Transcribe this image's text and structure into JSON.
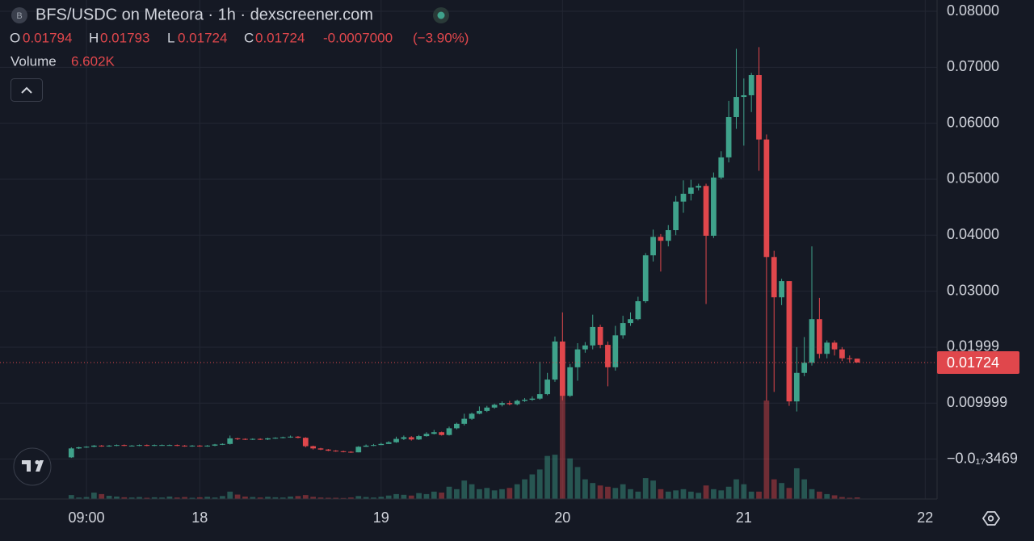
{
  "chart_data": {
    "type": "candlestick",
    "title": "BFS/USDC on Meteora · 1h · dexscreener.com",
    "ohlc_labels": [
      "O",
      "H",
      "L",
      "C"
    ],
    "change": "-0.0007000",
    "change_pct": "(−3.90%)",
    "volume_label": "Volume",
    "volume_value": "6.602K",
    "up_color": "#3fa28b",
    "down_color": "#e0474c",
    "grid": true,
    "xlim": [
      -2.44,
      121.57
    ],
    "xticks": [
      {
        "value": 9,
        "label": "09:00"
      },
      {
        "value": 24,
        "label": "18"
      },
      {
        "value": 48,
        "label": "19"
      },
      {
        "value": 72,
        "label": "20"
      },
      {
        "value": 96,
        "label": "21"
      },
      {
        "value": 120,
        "label": "22"
      }
    ],
    "ylim": [
      -0.00714,
      0.08202
    ],
    "yticks": [
      {
        "value": 0.08,
        "label": "0.08000"
      },
      {
        "value": 0.07,
        "label": "0.07000"
      },
      {
        "value": 0.06,
        "label": "0.06000"
      },
      {
        "value": 0.05,
        "label": "0.05000"
      },
      {
        "value": 0.04,
        "label": "0.04000"
      },
      {
        "value": 0.03,
        "label": "0.03000"
      },
      {
        "value": 0.01999,
        "label": "0.01999"
      },
      {
        "value": 0.009999,
        "label": "0.009999"
      },
      {
        "value": -3.469e-19,
        "label": "−0.0₁₇3469"
      }
    ],
    "x": [
      7,
      8,
      9,
      10,
      11,
      12,
      13,
      14,
      15,
      16,
      17,
      18,
      19,
      20,
      21,
      22,
      23,
      24,
      25,
      26,
      27,
      28,
      29,
      30,
      31,
      32,
      33,
      34,
      35,
      36,
      37,
      38,
      39,
      40,
      41,
      42,
      43,
      44,
      45,
      46,
      47,
      48,
      49,
      50,
      51,
      52,
      53,
      54,
      55,
      56,
      57,
      58,
      59,
      60,
      61,
      62,
      63,
      64,
      65,
      66,
      67,
      68,
      69,
      70,
      71,
      72,
      73,
      74,
      75,
      76,
      77,
      78,
      79,
      80,
      81,
      82,
      83,
      84,
      85,
      86,
      87,
      88,
      89,
      90,
      91,
      92,
      93,
      94,
      95,
      96,
      97,
      98,
      99,
      100,
      101,
      102,
      103,
      104,
      105,
      106,
      107,
      108,
      109,
      110,
      111
    ],
    "open": [
      0.0003,
      0.0019,
      0.0021,
      0.0022,
      0.0024,
      0.0023,
      0.0024,
      0.0025,
      0.0024,
      0.0024,
      0.0025,
      0.0024,
      0.0025,
      0.0025,
      0.0025,
      0.0024,
      0.0023,
      0.0024,
      0.0023,
      0.0024,
      0.0026,
      0.0027,
      0.0037,
      0.0036,
      0.0035,
      0.0036,
      0.0035,
      0.0037,
      0.0038,
      0.0039,
      0.004,
      0.0038,
      0.0023,
      0.0019,
      0.0017,
      0.0015,
      0.0014,
      0.0013,
      0.0012,
      0.0022,
      0.0024,
      0.0025,
      0.0027,
      0.003,
      0.0036,
      0.0039,
      0.0035,
      0.0041,
      0.0045,
      0.0048,
      0.0043,
      0.0055,
      0.0063,
      0.0072,
      0.0081,
      0.0086,
      0.0092,
      0.0097,
      0.01,
      0.0098,
      0.0104,
      0.0106,
      0.0108,
      0.0116,
      0.0142,
      0.021,
      0.0113,
      0.0164,
      0.0196,
      0.0203,
      0.0236,
      0.0204,
      0.0164,
      0.0221,
      0.0243,
      0.025,
      0.0282,
      0.0364,
      0.0397,
      0.039,
      0.0409,
      0.046,
      0.0474,
      0.0485,
      0.0488,
      0.0399,
      0.0503,
      0.0539,
      0.0611,
      0.0647,
      0.065,
      0.0686,
      0.0571,
      0.0361,
      0.0289,
      0.0318,
      0.0103,
      0.0154,
      0.0172,
      0.025,
      0.0188,
      0.0208,
      0.0196,
      0.018,
      0.01794
    ],
    "high": [
      0.0021,
      0.0022,
      0.0023,
      0.0025,
      0.0025,
      0.0025,
      0.0026,
      0.0026,
      0.0025,
      0.0026,
      0.0026,
      0.0026,
      0.0026,
      0.0026,
      0.0026,
      0.0025,
      0.0025,
      0.0025,
      0.0025,
      0.0027,
      0.0028,
      0.0042,
      0.0038,
      0.0037,
      0.0037,
      0.0037,
      0.0038,
      0.0039,
      0.004,
      0.0042,
      0.0041,
      0.0039,
      0.0024,
      0.002,
      0.0018,
      0.0016,
      0.0015,
      0.0014,
      0.0023,
      0.0026,
      0.0027,
      0.0029,
      0.0032,
      0.004,
      0.0042,
      0.0041,
      0.0043,
      0.0048,
      0.0052,
      0.0049,
      0.0058,
      0.0065,
      0.0081,
      0.0083,
      0.0094,
      0.0095,
      0.0099,
      0.0103,
      0.0104,
      0.0106,
      0.0109,
      0.0112,
      0.0174,
      0.0154,
      0.0219,
      0.0262,
      0.017,
      0.0207,
      0.0209,
      0.0258,
      0.024,
      0.021,
      0.0238,
      0.0256,
      0.0262,
      0.029,
      0.0368,
      0.041,
      0.0402,
      0.0418,
      0.047,
      0.0498,
      0.0499,
      0.0492,
      0.0492,
      0.0512,
      0.055,
      0.064,
      0.0733,
      0.068,
      0.069,
      0.0736,
      0.058,
      0.0372,
      0.0322,
      0.0318,
      0.02,
      0.0218,
      0.038,
      0.0288,
      0.0212,
      0.0212,
      0.02,
      0.0185,
      0.01793
    ],
    "low": [
      0.0002,
      0.0018,
      0.002,
      0.0021,
      0.0022,
      0.0022,
      0.0023,
      0.0023,
      0.0023,
      0.0023,
      0.0023,
      0.0023,
      0.0024,
      0.0024,
      0.0023,
      0.0022,
      0.0022,
      0.0022,
      0.0022,
      0.0023,
      0.0025,
      0.0026,
      0.0034,
      0.0034,
      0.0034,
      0.0034,
      0.0034,
      0.0036,
      0.0037,
      0.0038,
      0.0037,
      0.0021,
      0.0017,
      0.0016,
      0.0014,
      0.0013,
      0.0012,
      0.0011,
      0.0012,
      0.0022,
      0.0023,
      0.0025,
      0.0027,
      0.0029,
      0.0034,
      0.0033,
      0.0034,
      0.004,
      0.0044,
      0.0042,
      0.0042,
      0.0053,
      0.006,
      0.007,
      0.008,
      0.0084,
      0.009,
      0.0094,
      0.0096,
      0.0096,
      0.0102,
      0.0104,
      0.0106,
      0.0114,
      0.0138,
      0.0105,
      0.0111,
      0.014,
      0.019,
      0.0196,
      0.0198,
      0.013,
      0.0158,
      0.0215,
      0.0238,
      0.0248,
      0.0279,
      0.0353,
      0.0335,
      0.038,
      0.04,
      0.044,
      0.0462,
      0.048,
      0.0277,
      0.0395,
      0.05,
      0.053,
      0.059,
      0.056,
      0.062,
      0.0515,
      0.0104,
      0.012,
      0.0275,
      0.0095,
      0.0085,
      0.0148,
      0.0167,
      0.018,
      0.018,
      0.0185,
      0.0175,
      0.0172,
      0.01724
    ],
    "close": [
      0.0019,
      0.0021,
      0.0022,
      0.0024,
      0.0023,
      0.0024,
      0.0025,
      0.0024,
      0.0024,
      0.0025,
      0.0024,
      0.0025,
      0.0025,
      0.0025,
      0.0024,
      0.0023,
      0.0024,
      0.0023,
      0.0024,
      0.0026,
      0.0027,
      0.0037,
      0.0036,
      0.0035,
      0.0036,
      0.0035,
      0.0037,
      0.0038,
      0.0039,
      0.004,
      0.0038,
      0.0023,
      0.0019,
      0.0017,
      0.0015,
      0.0014,
      0.0013,
      0.0012,
      0.0022,
      0.0024,
      0.0025,
      0.0027,
      0.003,
      0.0036,
      0.0039,
      0.0035,
      0.0041,
      0.0045,
      0.0048,
      0.0043,
      0.0055,
      0.0063,
      0.0072,
      0.0081,
      0.0086,
      0.0092,
      0.0097,
      0.01,
      0.0098,
      0.0104,
      0.0106,
      0.0108,
      0.0116,
      0.0142,
      0.021,
      0.0113,
      0.0164,
      0.0196,
      0.0203,
      0.0236,
      0.0204,
      0.0164,
      0.0221,
      0.0243,
      0.025,
      0.0282,
      0.0364,
      0.0397,
      0.039,
      0.0409,
      0.046,
      0.0474,
      0.0485,
      0.0488,
      0.0399,
      0.0503,
      0.0539,
      0.0611,
      0.0647,
      0.065,
      0.0686,
      0.0571,
      0.0361,
      0.0289,
      0.0318,
      0.0103,
      0.0154,
      0.0172,
      0.025,
      0.0188,
      0.0208,
      0.0196,
      0.018,
      0.0179,
      0.01724
    ],
    "volume": [
      16000,
      6000,
      8000,
      26000,
      20000,
      13000,
      10000,
      7000,
      6000,
      8000,
      5000,
      7000,
      6000,
      10000,
      6000,
      8000,
      5000,
      7000,
      9000,
      6000,
      12000,
      30000,
      18000,
      10000,
      8000,
      6000,
      9000,
      7000,
      6000,
      10000,
      12000,
      16000,
      9000,
      6000,
      5000,
      5000,
      4000,
      6000,
      12000,
      8000,
      6000,
      9000,
      14000,
      20000,
      17000,
      14000,
      24000,
      20000,
      30000,
      26000,
      50000,
      40000,
      75000,
      60000,
      40000,
      45000,
      35000,
      40000,
      45000,
      60000,
      80000,
      100000,
      120000,
      175000,
      180000,
      420000,
      165000,
      130000,
      80000,
      65000,
      55000,
      50000,
      45000,
      60000,
      40000,
      30000,
      85000,
      75000,
      40000,
      30000,
      35000,
      40000,
      30000,
      25000,
      55000,
      40000,
      35000,
      50000,
      80000,
      60000,
      30000,
      30000,
      400000,
      80000,
      65000,
      45000,
      125000,
      80000,
      40000,
      30000,
      20000,
      15000,
      8000,
      5000,
      6602
    ]
  }
}
